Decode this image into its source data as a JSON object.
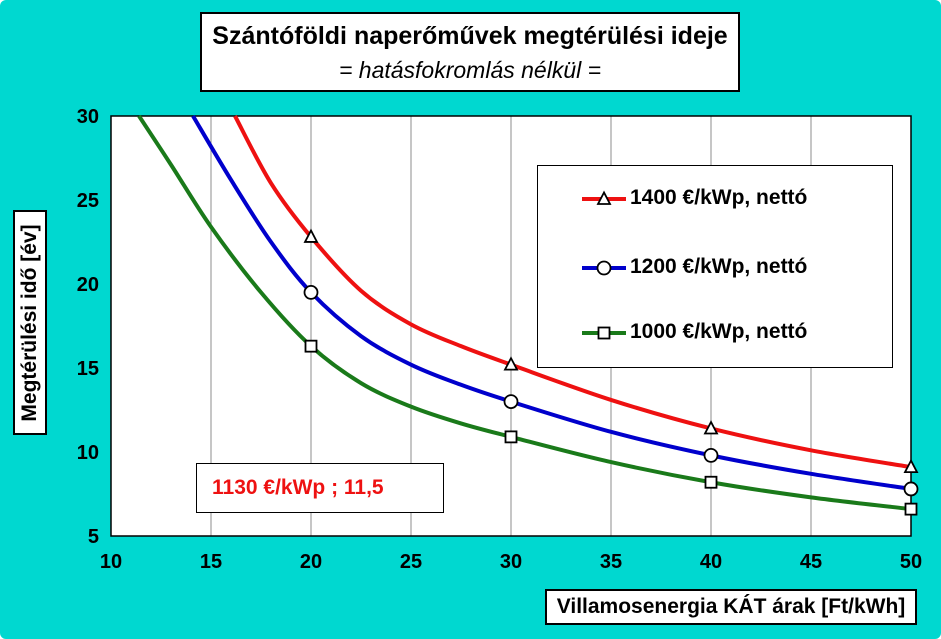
{
  "chart_data": {
    "type": "line",
    "title": "Szántóföldi naperőművek megtérülési ideje",
    "subtitle": "= hatásfokromlás nélkül =",
    "xlabel": "Villamosenergia KÁT árak [Ft/kWh]",
    "ylabel": "Megtérülési idő [év]",
    "xlim": [
      10,
      50
    ],
    "ylim": [
      5,
      30
    ],
    "xticks": [
      10,
      15,
      20,
      25,
      30,
      35,
      40,
      45,
      50
    ],
    "yticks": [
      5,
      10,
      15,
      20,
      25,
      30
    ],
    "grid": "vertical",
    "legend_position": "top-right",
    "plot_background": "#ffffff",
    "series": [
      {
        "name": "1400 €/kWp, nettó",
        "color": "#ee1111",
        "marker": "triangle",
        "curve": [
          [
            16.2,
            30
          ],
          [
            18,
            26.0
          ],
          [
            20,
            22.8
          ],
          [
            22.5,
            19.6
          ],
          [
            25,
            17.6
          ],
          [
            27.5,
            16.3
          ],
          [
            30,
            15.2
          ],
          [
            35,
            13.1
          ],
          [
            40,
            11.4
          ],
          [
            45,
            10.1
          ],
          [
            50,
            9.1
          ]
        ],
        "markers": [
          [
            20,
            22.8
          ],
          [
            30,
            15.2
          ],
          [
            40,
            11.4
          ],
          [
            50,
            9.1
          ]
        ]
      },
      {
        "name": "1200 €/kWp, nettó",
        "color": "#0000cc",
        "marker": "circle",
        "curve": [
          [
            14.1,
            30
          ],
          [
            16,
            26.2
          ],
          [
            18,
            22.5
          ],
          [
            20,
            19.5
          ],
          [
            22.5,
            16.9
          ],
          [
            25,
            15.2
          ],
          [
            27.5,
            14.0
          ],
          [
            30,
            13.0
          ],
          [
            35,
            11.2
          ],
          [
            40,
            9.8
          ],
          [
            45,
            8.7
          ],
          [
            50,
            7.8
          ]
        ],
        "markers": [
          [
            20,
            19.5
          ],
          [
            30,
            13.0
          ],
          [
            40,
            9.8
          ],
          [
            50,
            7.8
          ]
        ]
      },
      {
        "name": "1000 €/kWp, nettó",
        "color": "#1a7a1a",
        "marker": "square",
        "curve": [
          [
            11.4,
            30
          ],
          [
            13,
            27.1
          ],
          [
            15,
            23.4
          ],
          [
            17.5,
            19.5
          ],
          [
            20,
            16.3
          ],
          [
            22.5,
            14.1
          ],
          [
            25,
            12.7
          ],
          [
            27.5,
            11.7
          ],
          [
            30,
            10.9
          ],
          [
            35,
            9.4
          ],
          [
            40,
            8.2
          ],
          [
            45,
            7.3
          ],
          [
            50,
            6.6
          ]
        ],
        "markers": [
          [
            20,
            16.3
          ],
          [
            30,
            10.9
          ],
          [
            40,
            8.2
          ],
          [
            50,
            6.6
          ]
        ]
      }
    ],
    "annotation": {
      "text": "1130 €/kWp ; 11,5",
      "color": "#ee1111"
    }
  }
}
